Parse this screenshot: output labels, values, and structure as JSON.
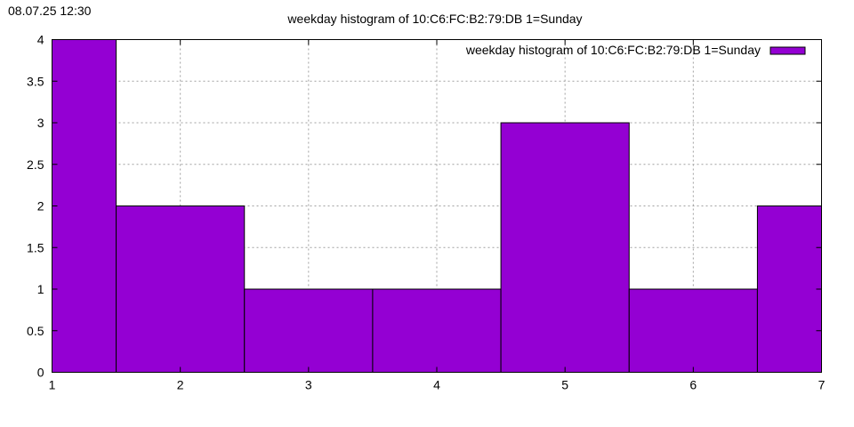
{
  "timestamp": "08.07.25 12:30",
  "chart_data": {
    "type": "bar",
    "title": "weekday histogram of 10:C6:FC:B2:79:DB 1=Sunday",
    "x": [
      1,
      2,
      3,
      4,
      5,
      6,
      7
    ],
    "series": [
      {
        "name": "weekday histogram of 10:C6:FC:B2:79:DB 1=Sunday",
        "values": [
          4,
          2,
          1,
          1,
          3,
          1,
          2
        ],
        "color": "#9400d3"
      }
    ],
    "xlim": [
      1,
      7
    ],
    "ylim": [
      0,
      4
    ],
    "xticks": [
      "1",
      "2",
      "3",
      "4",
      "5",
      "6",
      "7"
    ],
    "yticks": [
      "0",
      "0.5",
      "1",
      "1.5",
      "2",
      "2.5",
      "3",
      "3.5",
      "4"
    ],
    "grid": true,
    "legend_position": "top-right"
  }
}
